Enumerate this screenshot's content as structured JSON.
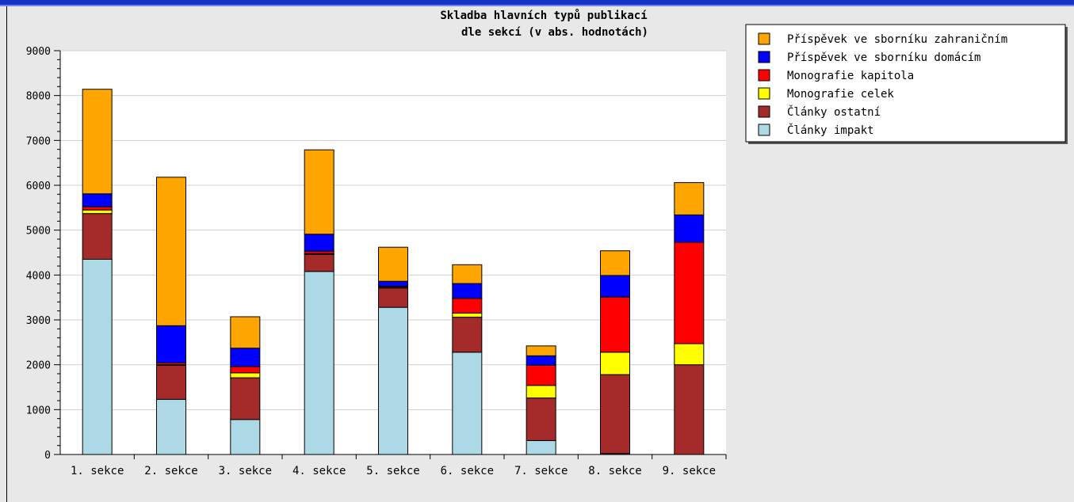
{
  "chart_data": {
    "type": "bar",
    "stacked": true,
    "title_line1": "Skladba hlavních typů publikací",
    "title_line2": "dle sekcí (v abs. hodnotách)",
    "xlabel": "",
    "ylabel": "",
    "ylim": [
      0,
      9000
    ],
    "yticks": [
      "0",
      "1000",
      "2000",
      "3000",
      "4000",
      "5000",
      "6000",
      "7000",
      "8000",
      "9000"
    ],
    "grid": "horizontal",
    "legend_position": "top-right",
    "categories": [
      "1. sekce",
      "2. sekce",
      "3. sekce",
      "4. sekce",
      "5. sekce",
      "6. sekce",
      "7. sekce",
      "8. sekce",
      "9. sekce"
    ],
    "series": [
      {
        "name": "Články impakt",
        "color": "#add8e6",
        "values": [
          4350,
          1230,
          780,
          4080,
          3280,
          2280,
          310,
          20,
          0
        ]
      },
      {
        "name": "Články ostatní",
        "color": "#a52a2a",
        "values": [
          1020,
          760,
          930,
          380,
          430,
          780,
          950,
          1760,
          2000
        ]
      },
      {
        "name": "Monografie celek",
        "color": "#ffff00",
        "values": [
          80,
          10,
          110,
          20,
          20,
          90,
          280,
          500,
          470
        ]
      },
      {
        "name": "Monografie kapitola",
        "color": "#ff0000",
        "values": [
          70,
          40,
          140,
          50,
          20,
          330,
          450,
          1230,
          2260
        ]
      },
      {
        "name": "Příspěvek ve sborníku domácím",
        "color": "#0000ff",
        "values": [
          290,
          830,
          410,
          380,
          110,
          330,
          210,
          480,
          610
        ]
      },
      {
        "name": "Příspěvek ve sborníku zahraničním",
        "color": "#ffa500",
        "values": [
          2330,
          3310,
          700,
          1880,
          760,
          420,
          220,
          550,
          720
        ]
      }
    ]
  }
}
